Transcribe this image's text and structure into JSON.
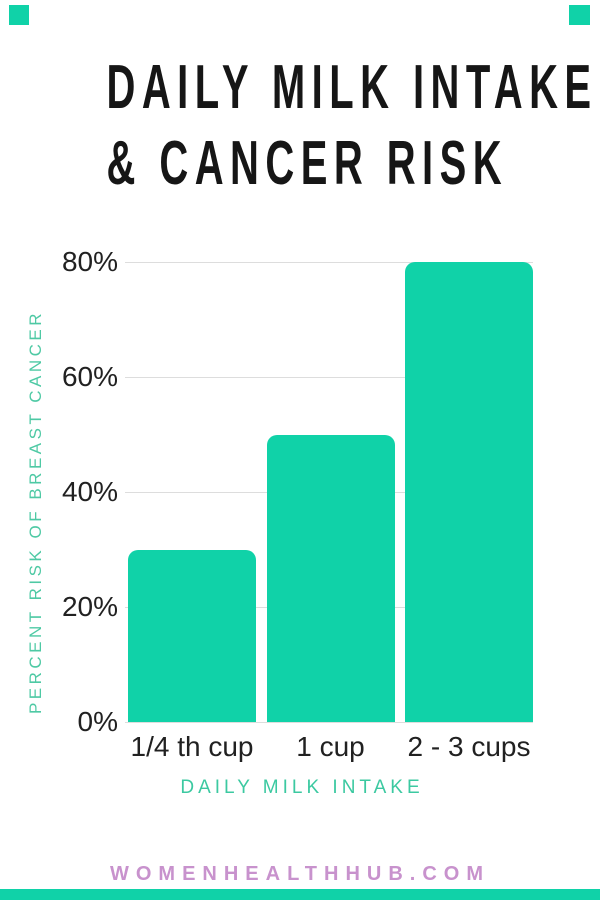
{
  "title": {
    "line1": "DAILY MILK INTAKE",
    "line2": "& CANCER RISK"
  },
  "chart_data": {
    "type": "bar",
    "title": "DAILY MILK INTAKE & CANCER RISK",
    "categories": [
      "1/4 th cup",
      "1 cup",
      "2 - 3 cups"
    ],
    "values": [
      30,
      50,
      80
    ],
    "value_unit": "%",
    "xlabel": "DAILY MILK INTAKE",
    "ylabel": "PERCENT RISK OF BREAST CANCER",
    "ylim": [
      0,
      80
    ],
    "yticks": [
      "0%",
      "20%",
      "40%",
      "60%",
      "80%"
    ],
    "grid": true,
    "legend": false,
    "bar_color": "#10D2A8"
  },
  "footer": {
    "text": "WOMENHEALTHHUB.COM"
  },
  "colors": {
    "background": "#FFFFFF",
    "accent_teal": "#10D2A8",
    "axis_teal": "#3CC9A1",
    "y_axis_teal": "#4EC9A4",
    "footer_pink": "#C892CD",
    "grid_gray": "#DDDDDD",
    "tick_black": "#212121",
    "title_black": "#161616"
  }
}
